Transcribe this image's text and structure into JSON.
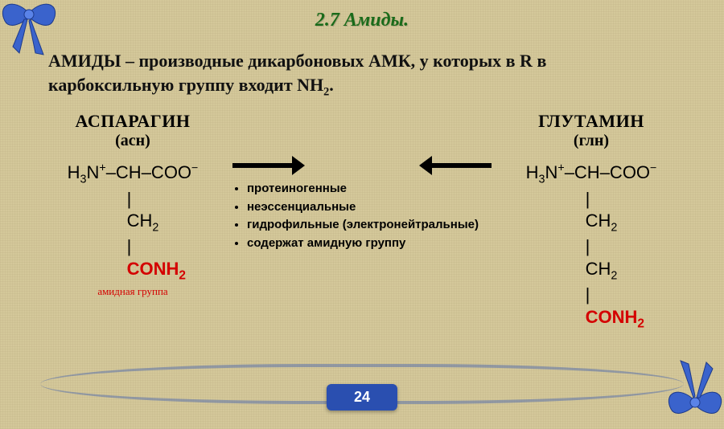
{
  "title": "2.7 Амиды.",
  "definition_html": "АМИДЫ – производные дикарбоновых АМК, у которых в R в карбоксильную группу входит NH<sub>2</sub>.",
  "left": {
    "name": "АСПАРАГИН",
    "abbr": "(асн)",
    "formula": {
      "l1": "H<sub>3</sub>N<sup>+</sup>–CH–COO<sup>−</sup>",
      "l2": "|",
      "l3": "CH<sub>2</sub>",
      "l4": "|",
      "l5": "CONH<sub>2</sub>"
    },
    "amide_label": "амидная группа"
  },
  "right": {
    "name": "ГЛУТАМИН",
    "abbr": "(глн)",
    "formula": {
      "l1": "H<sub>3</sub>N<sup>+</sup>–CH–COO<sup>−</sup>",
      "l2": "|",
      "l3": "CH<sub>2</sub>",
      "l4": "|",
      "l5": "CH<sub>2</sub>",
      "l6": "|",
      "l7": "CONH<sub>2</sub>"
    }
  },
  "bullets": [
    "протеиногенные",
    "неэссенциальные",
    "гидрофильные (электронейтральные)",
    "содержат амидную группу"
  ],
  "page_number": "24",
  "colors": {
    "title": "#1a6b1a",
    "accent_red": "#d40000",
    "badge_bg": "#2a4fb0",
    "ribbon": "#2a4fb0",
    "background": "#d4c89a"
  }
}
